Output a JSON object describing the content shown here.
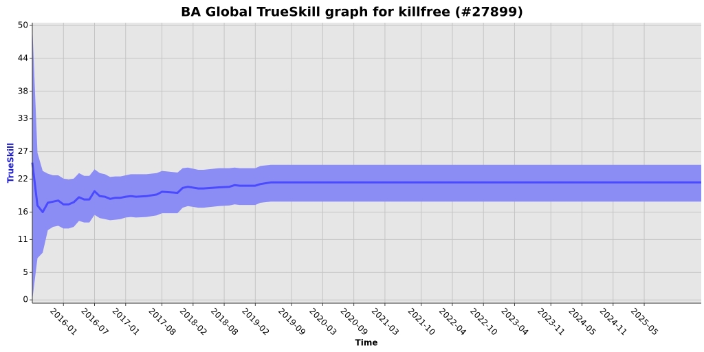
{
  "chart_data": {
    "type": "line",
    "title": "BA Global TrueSkill graph for killfree (#27899)",
    "x_label": "Time",
    "y_label": "TrueSkill",
    "x": [
      "2015-07",
      "2015-08",
      "2015-09",
      "2015-10",
      "2015-11",
      "2015-12",
      "2016-01",
      "2016-02",
      "2016-03",
      "2016-04",
      "2016-05",
      "2016-06",
      "2016-07",
      "2016-08",
      "2016-09",
      "2016-10",
      "2016-11",
      "2016-12",
      "2017-01",
      "2017-02",
      "2017-03",
      "2017-05",
      "2017-07",
      "2017-08",
      "2017-11",
      "2017-12",
      "2018-01",
      "2018-03",
      "2018-04",
      "2018-07",
      "2018-09",
      "2018-10",
      "2018-11",
      "2019-02",
      "2019-03",
      "2019-05",
      "2026-04"
    ],
    "values": [
      25,
      17.2,
      16,
      17.7,
      17.9,
      18.1,
      17.4,
      17.4,
      17.8,
      18.7,
      18.3,
      18.3,
      19.8,
      18.9,
      18.8,
      18.4,
      18.6,
      18.6,
      18.8,
      18.9,
      18.8,
      18.9,
      19.2,
      19.7,
      19.5,
      20.4,
      20.6,
      20.3,
      20.3,
      20.5,
      20.6,
      20.9,
      20.8,
      20.8,
      21.1,
      21.4,
      21.4
    ],
    "upper": [
      50,
      26.8,
      23.5,
      23,
      22.7,
      22.7,
      22.1,
      21.9,
      22.1,
      23.1,
      22.6,
      22.6,
      23.8,
      23.1,
      22.9,
      22.4,
      22.5,
      22.5,
      22.7,
      22.9,
      22.9,
      22.9,
      23.1,
      23.5,
      23.2,
      24,
      24.1,
      23.7,
      23.7,
      24,
      24,
      24.1,
      24,
      24,
      24.4,
      24.6,
      24.6
    ],
    "lower": [
      0,
      7.6,
      8.6,
      12.7,
      13.3,
      13.5,
      13,
      13,
      13.3,
      14.4,
      14.1,
      14.1,
      15.5,
      14.9,
      14.7,
      14.5,
      14.6,
      14.7,
      15,
      15.1,
      15,
      15.1,
      15.4,
      15.8,
      15.8,
      16.8,
      17.1,
      16.8,
      16.8,
      17.1,
      17.2,
      17.4,
      17.3,
      17.3,
      17.7,
      17.9,
      17.9
    ],
    "color": "#4a4aff",
    "band_color": "#8c8cf5",
    "background": "#e6e6e6",
    "xlim": [
      "2015-07",
      "2026-04"
    ],
    "xticks": [
      "2016-01",
      "2016-07",
      "2017-01",
      "2017-08",
      "2018-02",
      "2018-08",
      "2019-02",
      "2019-09",
      "2020-03",
      "2020-09",
      "2021-03",
      "2021-10",
      "2022-04",
      "2022-10",
      "2023-04",
      "2023-11",
      "2024-05",
      "2024-11",
      "2025-05"
    ],
    "ylim": [
      -0.6,
      50.5
    ],
    "yticks": [
      0,
      5,
      11,
      16,
      22,
      27,
      33,
      38,
      44,
      50
    ],
    "grid": true
  }
}
